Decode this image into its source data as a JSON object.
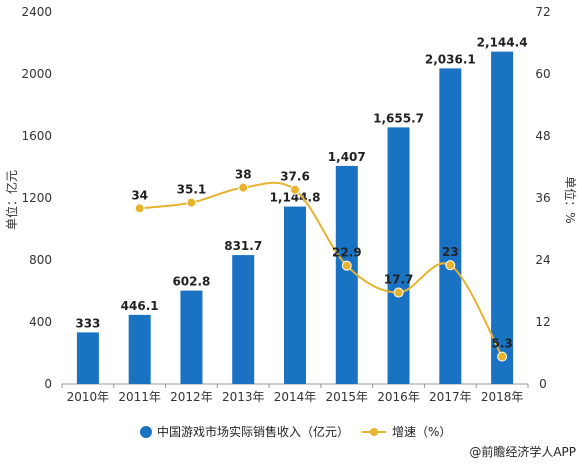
{
  "chart_data": {
    "type": "bar",
    "categories": [
      "2010年",
      "2011年",
      "2012年",
      "2013年",
      "2014年",
      "2015年",
      "2016年",
      "2017年",
      "2018年"
    ],
    "series": [
      {
        "name": "中国游戏市场实际销售收入（亿元）",
        "type": "bar",
        "axis": "left",
        "values": [
          333,
          446.1,
          602.8,
          831.7,
          1144.8,
          1407,
          1655.7,
          2036.1,
          2144.4
        ],
        "labels": [
          "333",
          "446.1",
          "602.8",
          "831.7",
          "1,144.8",
          "1,407",
          "1,655.7",
          "2,036.1",
          "2,144.4"
        ]
      },
      {
        "name": "增速（%）",
        "type": "line",
        "axis": "right",
        "values": [
          null,
          34,
          35.1,
          38,
          37.6,
          22.9,
          17.7,
          23,
          5.3
        ],
        "labels": [
          "",
          "34",
          "35.1",
          "38",
          "37.6",
          "22.9",
          "17.7",
          "23",
          "5.3"
        ]
      }
    ],
    "ylabel": "单位：亿元",
    "y2label": "单位：%",
    "ylim": [
      0,
      2400
    ],
    "y2lim": [
      0,
      72
    ],
    "yticks": [
      "0",
      "400",
      "800",
      "1200",
      "1600",
      "2000",
      "2400"
    ],
    "y2ticks": [
      "0",
      "12",
      "24",
      "36",
      "48",
      "60",
      "72"
    ],
    "grid": false,
    "legend_position": "bottom",
    "colors": {
      "bar": "#1a73c2",
      "line": "#e8b32e"
    }
  },
  "footer": {
    "source": "@前瞻经济学人APP"
  }
}
